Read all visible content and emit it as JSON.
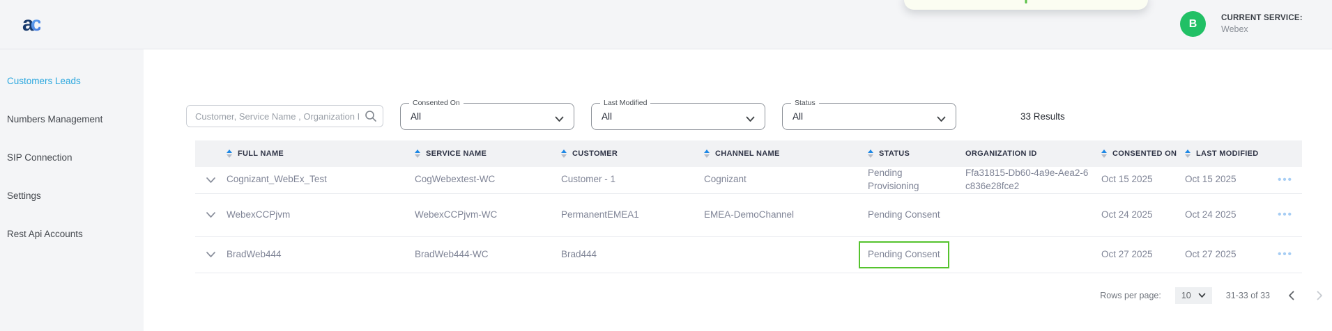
{
  "app": {
    "logo_text_a": "a",
    "logo_text_c": "c"
  },
  "topbar": {
    "current_service_label": "CURRENT SERVICE:",
    "current_service_value": "Webex",
    "avatar_initial": "B"
  },
  "sidebar": {
    "items": [
      {
        "label": "Customers Leads",
        "active": true
      },
      {
        "label": "Numbers Management",
        "active": false
      },
      {
        "label": "SIP Connection",
        "active": false
      },
      {
        "label": "Settings",
        "active": false
      },
      {
        "label": "Rest Api Accounts",
        "active": false
      }
    ]
  },
  "filters": {
    "search_placeholder": "Customer, Service Name , Organization ID",
    "selects": [
      {
        "label": "Consented On",
        "value": "All"
      },
      {
        "label": "Last Modified",
        "value": "All"
      },
      {
        "label": "Status",
        "value": "All"
      }
    ],
    "results_count": "33 Results"
  },
  "table": {
    "columns": [
      {
        "label": "FULL NAME",
        "sortable": true
      },
      {
        "label": "SERVICE NAME",
        "sortable": true
      },
      {
        "label": "CUSTOMER",
        "sortable": true
      },
      {
        "label": "CHANNEL NAME",
        "sortable": true
      },
      {
        "label": "STATUS",
        "sortable": true
      },
      {
        "label": "ORGANIZATION ID",
        "sortable": false
      },
      {
        "label": "CONSENTED ON",
        "sortable": true
      },
      {
        "label": "LAST MODIFIED",
        "sortable": true
      }
    ],
    "rows": [
      {
        "full_name": "Cognizant_WebEx_Test",
        "service_name": "CogWebextest-WC",
        "customer": "Customer - 1",
        "channel_name": "Cognizant",
        "status": "Pending Provisioning",
        "status_highlighted": false,
        "organization_id": "Ffa31815-Db60-4a9e-Aea2-6c836e28fce2",
        "consented_on": "Oct 15 2025",
        "last_modified": "Oct 15 2025"
      },
      {
        "full_name": "WebexCCPjvm",
        "service_name": "WebexCCPjvm-WC",
        "customer": "PermanentEMEA1",
        "channel_name": "EMEA-DemoChannel",
        "status": "Pending Consent",
        "status_highlighted": false,
        "organization_id": "",
        "consented_on": "Oct 24 2025",
        "last_modified": "Oct 24 2025"
      },
      {
        "full_name": "BradWeb444",
        "service_name": "BradWeb444-WC",
        "customer": "Brad444",
        "channel_name": "",
        "status": "Pending Consent",
        "status_highlighted": true,
        "organization_id": "",
        "consented_on": "Oct 27 2025",
        "last_modified": "Oct 27 2025"
      }
    ]
  },
  "pagination": {
    "rows_per_page_label": "Rows per page:",
    "rows_per_page_value": "10",
    "range_label": "31-33 of 33"
  },
  "colors": {
    "accent_blue": "#2ba7de",
    "avatar_green": "#21c065",
    "status_highlight_green": "#55c32e",
    "sort_active_blue": "#1e88e5"
  }
}
